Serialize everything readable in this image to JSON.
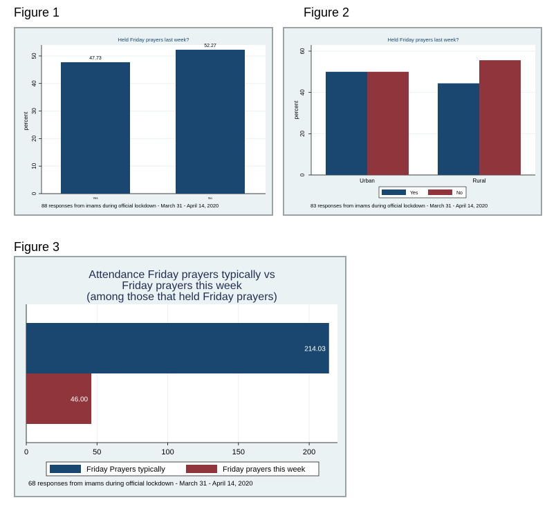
{
  "figures": [
    {
      "label": "Figure 1"
    },
    {
      "label": "Figure 2"
    },
    {
      "label": "Figure 3"
    }
  ],
  "colors": {
    "yes": "#1a476f",
    "no": "#90353b",
    "panel_bg": "#eaf2f3",
    "plot_bg": "#ffffff"
  },
  "chart_data": [
    {
      "type": "bar",
      "title": "Held Friday prayers last week?",
      "ylabel": "percent",
      "categories": [
        "Yes",
        "No"
      ],
      "values": [
        47.73,
        52.27
      ],
      "data_labels": [
        "47.73",
        "52.27"
      ],
      "ylim": [
        0,
        54
      ],
      "yticks": [
        0,
        10,
        20,
        30,
        40,
        50
      ],
      "note": "88 responses from imams during official lockdown - March 31 - April 14, 2020"
    },
    {
      "type": "bar",
      "title": "Held Friday prayers last week?",
      "ylabel": "percent",
      "categories": [
        "Urban",
        "Rural"
      ],
      "series": [
        {
          "name": "Yes",
          "values": [
            50.0,
            44.4
          ]
        },
        {
          "name": "No",
          "values": [
            50.0,
            55.6
          ]
        }
      ],
      "ylim": [
        0,
        63
      ],
      "yticks": [
        0,
        20,
        40,
        60
      ],
      "legend": "bottom",
      "note": "83 responses from imams during official lockdown - March 31 - April 14, 2020"
    },
    {
      "type": "bar",
      "orientation": "horizontal",
      "title": [
        "Attendance Friday prayers typically vs",
        "Friday prayers this week",
        "(among those that held Friday prayers)"
      ],
      "series": [
        {
          "name": "Friday Prayers typically",
          "values": [
            214.03
          ]
        },
        {
          "name": "Friday prayers this week",
          "values": [
            46.0
          ]
        }
      ],
      "data_labels": [
        "214.03",
        "46.00"
      ],
      "xlim": [
        0,
        220
      ],
      "xticks": [
        0,
        50,
        100,
        150,
        200
      ],
      "legend": "bottom",
      "note": "68 responses from imams during official lockdown - March 31 - April 14, 2020"
    }
  ]
}
